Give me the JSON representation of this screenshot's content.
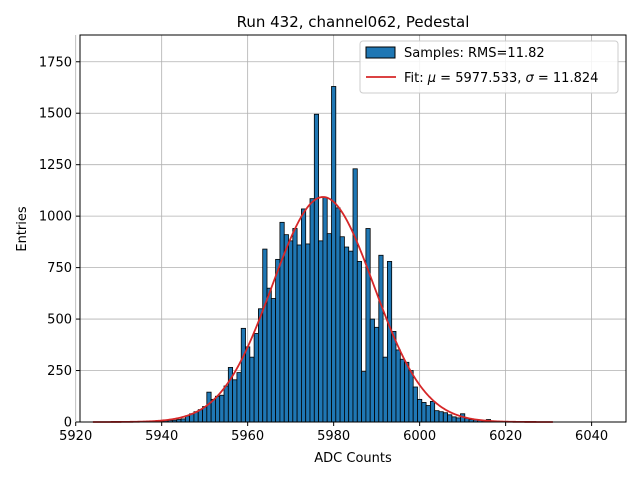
{
  "chart_data": {
    "type": "bar",
    "title": "Run 432, channel062, Pedestal",
    "xlabel": "ADC Counts",
    "ylabel": "Entries",
    "xlim": [
      5921,
      6048
    ],
    "ylim": [
      0,
      1880
    ],
    "xticks": [
      5920,
      5940,
      5960,
      5980,
      6000,
      6020,
      6040
    ],
    "yticks": [
      0,
      250,
      500,
      750,
      1000,
      1250,
      1500,
      1750
    ],
    "grid": true,
    "legend_position": "top-right",
    "bin_width": 1,
    "colors": {
      "bars": "#1f77b4",
      "bar_edge": "#000000",
      "fit": "#d62728"
    },
    "series": [
      {
        "name": "Samples: RMS=11.82",
        "type": "histogram",
        "x": [
          5940,
          5941,
          5942,
          5943,
          5944,
          5945,
          5946,
          5947,
          5948,
          5949,
          5950,
          5951,
          5952,
          5953,
          5954,
          5955,
          5956,
          5957,
          5958,
          5959,
          5960,
          5961,
          5962,
          5963,
          5964,
          5965,
          5966,
          5967,
          5968,
          5969,
          5970,
          5971,
          5972,
          5973,
          5974,
          5975,
          5976,
          5977,
          5978,
          5979,
          5980,
          5981,
          5982,
          5983,
          5984,
          5985,
          5986,
          5987,
          5988,
          5989,
          5990,
          5991,
          5992,
          5993,
          5994,
          5995,
          5996,
          5997,
          5998,
          5999,
          6000,
          6001,
          6002,
          6003,
          6004,
          6005,
          6006,
          6007,
          6008,
          6009,
          6010,
          6011,
          6012,
          6013,
          6014,
          6015,
          6016,
          6017,
          6018
        ],
        "values": [
          5,
          6,
          8,
          9,
          12,
          15,
          30,
          40,
          50,
          60,
          75,
          145,
          110,
          125,
          130,
          175,
          265,
          205,
          240,
          455,
          365,
          315,
          430,
          550,
          840,
          650,
          600,
          790,
          970,
          910,
          880,
          940,
          860,
          1035,
          865,
          1085,
          1495,
          880,
          1090,
          915,
          1630,
          1040,
          900,
          850,
          830,
          1230,
          780,
          245,
          940,
          500,
          460,
          810,
          315,
          780,
          440,
          350,
          305,
          290,
          250,
          170,
          110,
          95,
          80,
          100,
          55,
          50,
          45,
          35,
          25,
          20,
          40,
          18,
          12,
          10,
          8,
          6,
          12,
          5,
          4
        ]
      },
      {
        "name": "Fit: μ = 5977.533, σ = 11.824",
        "type": "gaussian-fit",
        "mu": 5977.533,
        "sigma": 11.824,
        "amplitude": 1093,
        "x_range": [
          5924,
          6031
        ]
      }
    ]
  },
  "legend": {
    "bars_label": "Samples: RMS=11.82",
    "fit_prefix": "Fit: ",
    "fit_mu_symbol": "μ",
    "fit_mid": " = 5977.533, ",
    "fit_sigma_symbol": "σ",
    "fit_suffix": " = 11.824"
  }
}
